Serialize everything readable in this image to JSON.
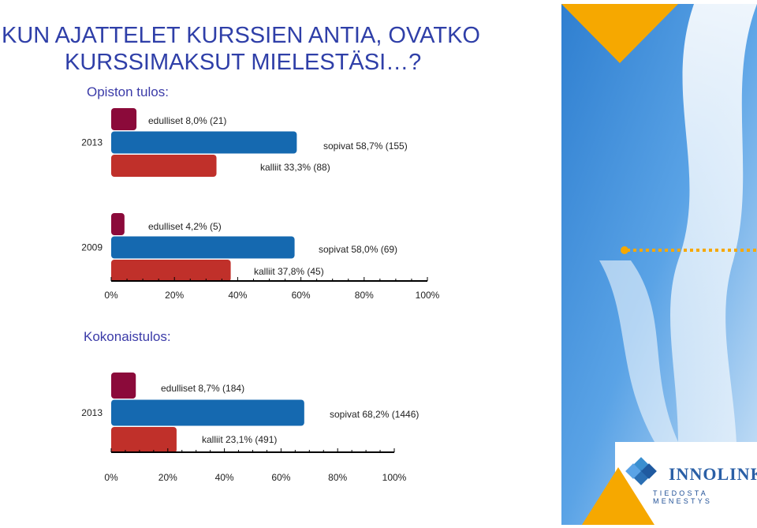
{
  "title_lines": [
    "KUN AJATTELET KURSSIEN ANTIA, OVATKO",
    "KURSSIMAKSUT MIELESTÄSI…?"
  ],
  "section1_label": "Opiston tulos:",
  "section2_label": "Kokonaistulos:",
  "logo": {
    "name": "INNOLINK",
    "tagline": "TIEDOSTA MENESTYS"
  },
  "colors": {
    "title": "#2f3fa8",
    "edulliset": "#8b0a3a",
    "sopivat": "#1569b0",
    "kalliit": "#c0302a",
    "accent": "#f4a100"
  },
  "chart_data": [
    {
      "type": "bar",
      "orientation": "horizontal",
      "categories": [
        "2013",
        "2009"
      ],
      "series": [
        {
          "name": "edulliset",
          "values": [
            8.0,
            4.2
          ],
          "labels": [
            "edulliset 8,0% (21)",
            "edulliset 4,2% (5)"
          ]
        },
        {
          "name": "sopivat",
          "values": [
            58.7,
            58.0
          ],
          "labels": [
            "sopivat 58,7% (155)",
            "sopivat 58,0% (69)"
          ]
        },
        {
          "name": "kalliit",
          "values": [
            33.3,
            37.8
          ],
          "labels": [
            "kalliit 33,3% (88)",
            "kalliit 37,8% (45)"
          ]
        }
      ],
      "xlim": [
        0,
        100
      ],
      "xticks": [
        "0%",
        "20%",
        "40%",
        "60%",
        "80%",
        "100%"
      ]
    },
    {
      "type": "bar",
      "orientation": "horizontal",
      "categories": [
        "2013"
      ],
      "series": [
        {
          "name": "edulliset",
          "values": [
            8.7
          ],
          "labels": [
            "edulliset 8,7% (184)"
          ]
        },
        {
          "name": "sopivat",
          "values": [
            68.2
          ],
          "labels": [
            "sopivat 68,2% (1446)"
          ]
        },
        {
          "name": "kalliit",
          "values": [
            23.1
          ],
          "labels": [
            "kalliit 23,1% (491)"
          ]
        }
      ],
      "xlim": [
        0,
        100
      ],
      "xticks": [
        "0%",
        "20%",
        "40%",
        "60%",
        "80%",
        "100%"
      ]
    }
  ]
}
